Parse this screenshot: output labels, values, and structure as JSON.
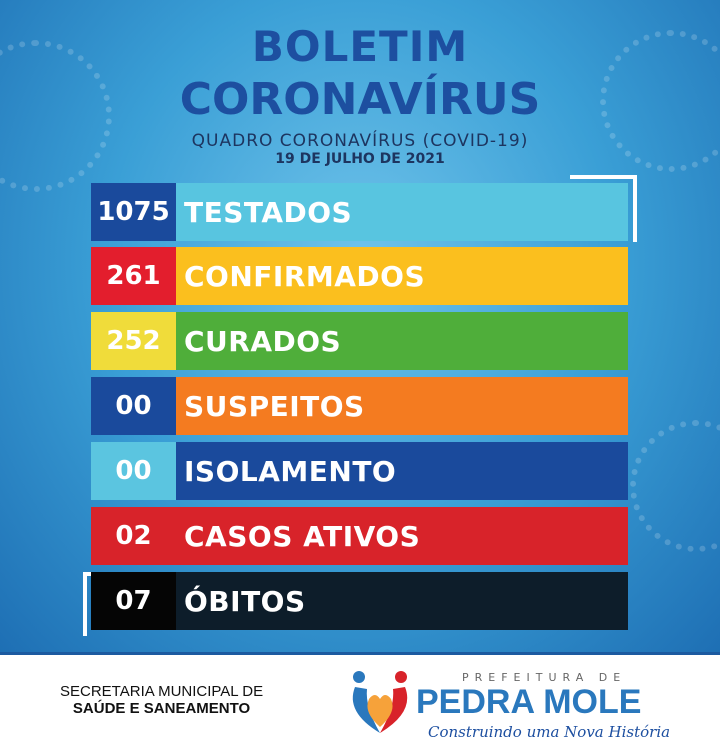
{
  "header": {
    "title_line1": "BOLETIM",
    "title_line2": "CORONAVÍRUS",
    "subtitle": "QUADRO CORONAVÍRUS (COVID-19)",
    "date": "19 DE JULHO DE 2021"
  },
  "rows": [
    {
      "value": "1075",
      "label": "TESTADOS",
      "num_color": "#1a4a9c",
      "label_color": "#58c5e0"
    },
    {
      "value": "261",
      "label": "CONFIRMADOS",
      "num_color": "#e31e2d",
      "label_color": "#fbbf1e"
    },
    {
      "value": "252",
      "label": "CURADOS",
      "num_color": "#f0dc3a",
      "label_color": "#4fae3a"
    },
    {
      "value": "00",
      "label": "SUSPEITOS",
      "num_color": "#1a4a9c",
      "label_color": "#f47b20"
    },
    {
      "value": "00",
      "label": "ISOLAMENTO",
      "num_color": "#5bc5e0",
      "label_color": "#1a4a9c"
    },
    {
      "value": "02",
      "label": "CASOS ATIVOS",
      "num_color": "#d8232a",
      "label_color": "#d8232a"
    },
    {
      "value": "07",
      "label": "ÓBITOS",
      "num_color": "#050505",
      "label_color": "#0d1d2a"
    }
  ],
  "footer": {
    "secretaria_line1": "SECRETARIA MUNICIPAL DE",
    "secretaria_line2": "SAÚDE E SANEAMENTO",
    "logo_top": "PREFEITURA DE",
    "logo_name": "PEDRA MOLE",
    "logo_slogan": "Construindo uma Nova História"
  }
}
